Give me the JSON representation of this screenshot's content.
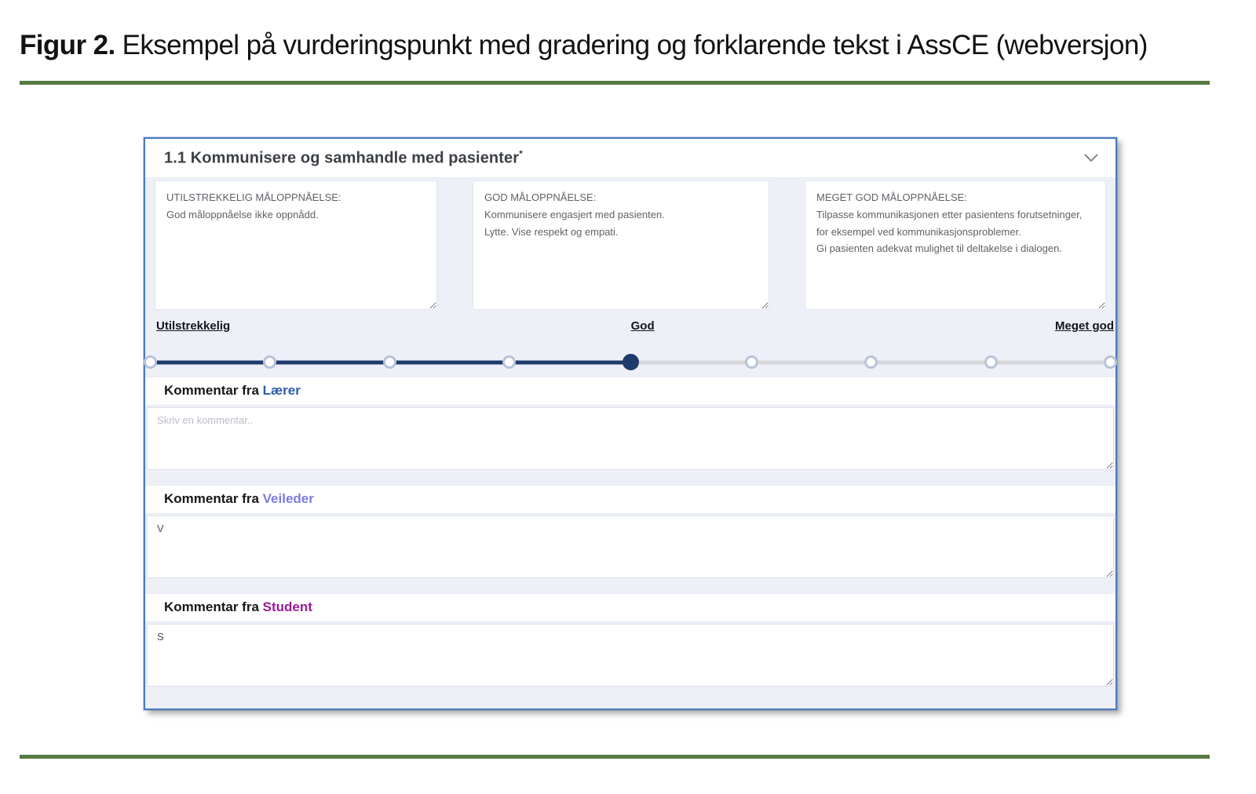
{
  "caption": {
    "prefix": "Figur 2.",
    "text": "Eksempel på vurderingspunkt med gradering og forklarende tekst i AssCE (webversjon)"
  },
  "rule_color": "#557a42",
  "panel": {
    "title": "1.1 Kommunisere og samhandle med pasienter",
    "title_asterisk": "*",
    "border_color": "#4a7ac2",
    "chevron_icon": "chevron-down"
  },
  "descriptions": [
    "UTILSTREKKELIG MÅLOPPNÅELSE:\nGod måloppnåelse ikke oppnådd.",
    "GOD MÅLOPPNÅELSE:\nKommunisere engasjert med pasienten.\nLytte. Vise respekt og empati.",
    "MEGET GOD MÅLOPPNÅELSE:\nTilpasse kommunikasjonen etter pasientens forutsetninger, for eksempel ved kommunikasjonsproblemer.\nGi pasienten adekvat mulighet til deltakelse i dialogen."
  ],
  "scale": {
    "labels": [
      "Utilstrekkelig",
      "God",
      "Meget god"
    ],
    "point_count": 9,
    "selected_index": 4,
    "active_color": "#1e3a6b",
    "inactive_color": "#d7d7db"
  },
  "comments": [
    {
      "label_prefix": "Kommentar fra",
      "role": "Lærer",
      "role_color": "#2a5ca8",
      "placeholder": "Skriv en kommentar..",
      "value": ""
    },
    {
      "label_prefix": "Kommentar fra",
      "role": "Veileder",
      "role_color": "#7d7ce0",
      "placeholder": "",
      "value": "V"
    },
    {
      "label_prefix": "Kommentar fra",
      "role": "Student",
      "role_color": "#9b1b97",
      "placeholder": "",
      "value": "S"
    }
  ]
}
